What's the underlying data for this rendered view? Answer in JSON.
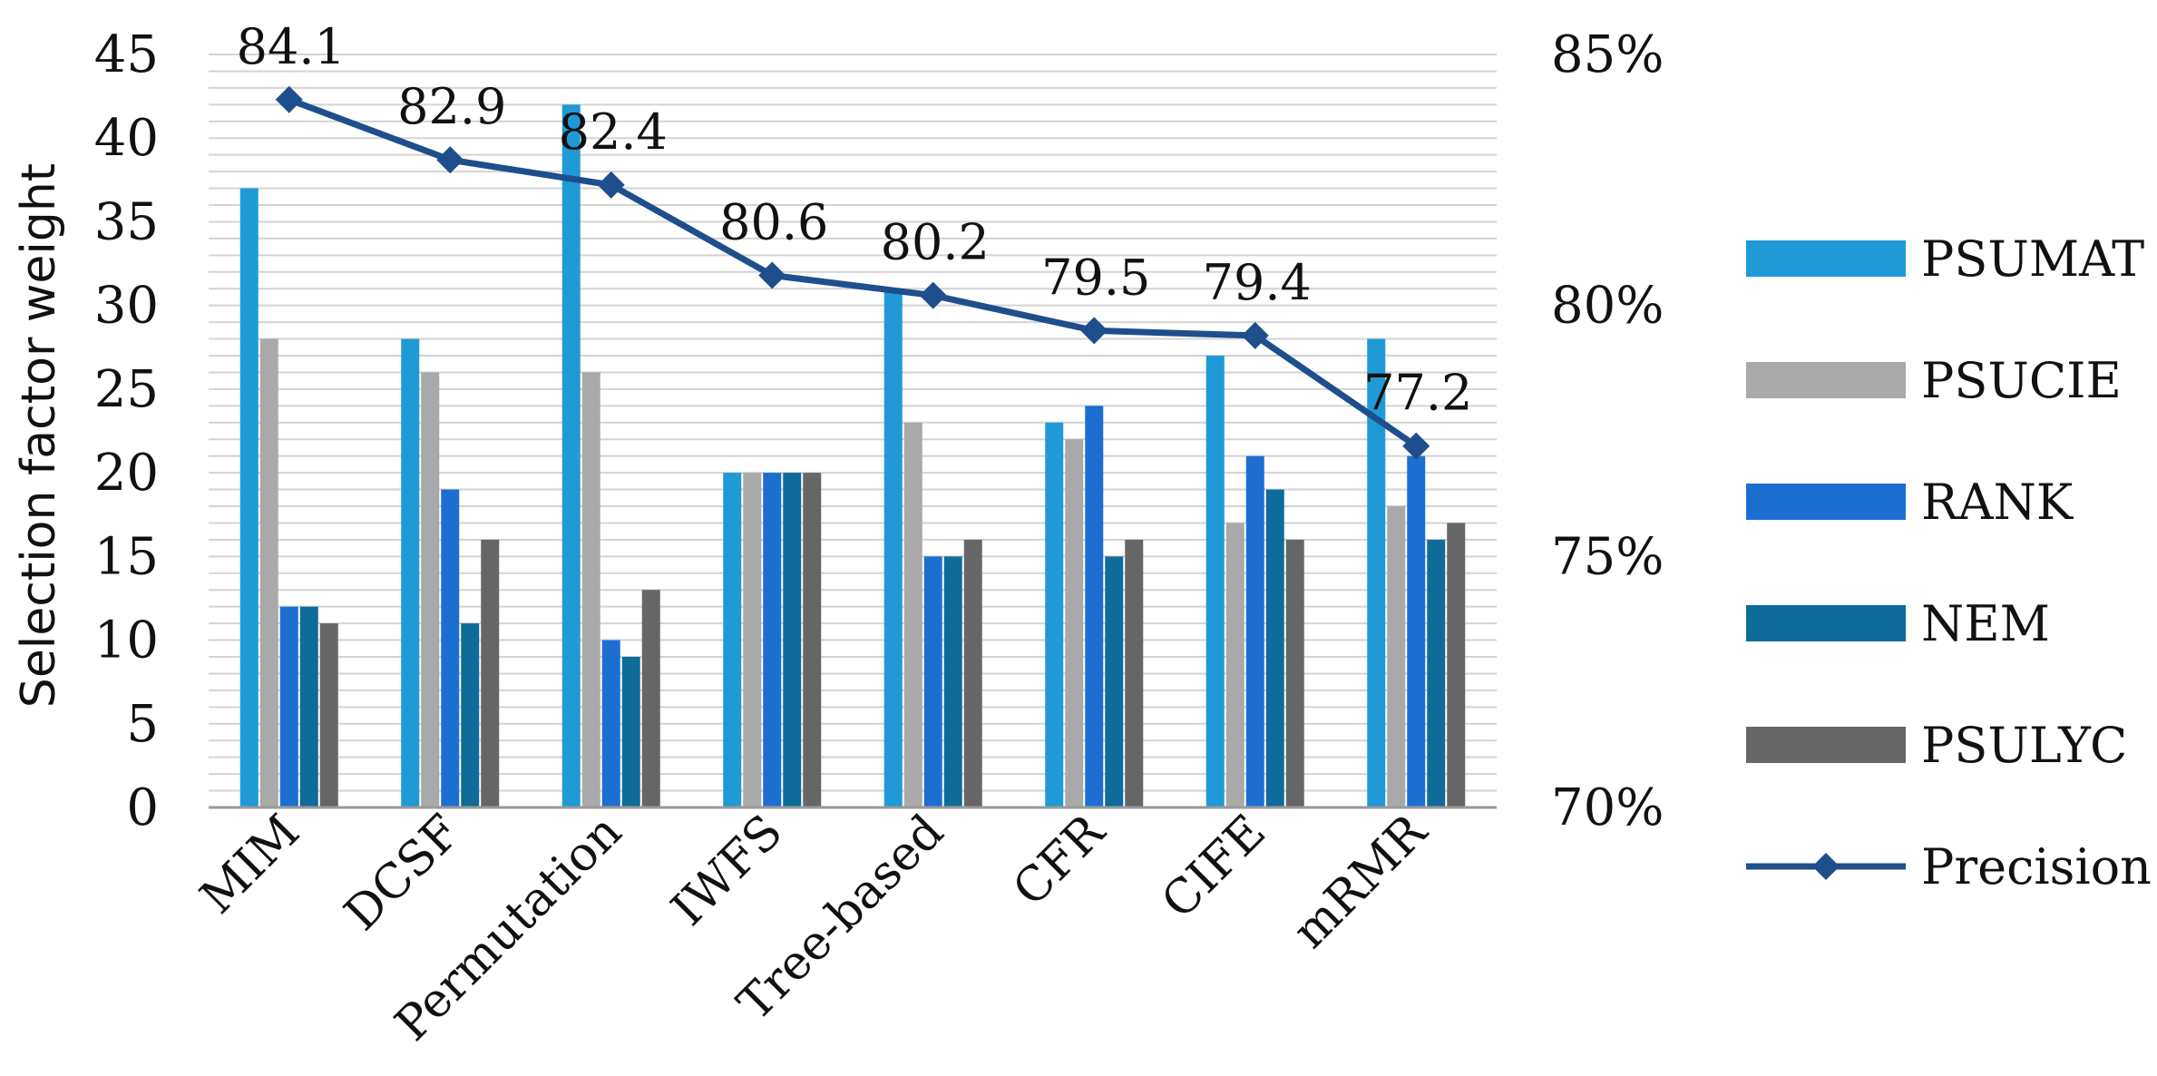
{
  "chart_data": {
    "type": "bar",
    "title": "",
    "xlabel": "",
    "ylabel": "Selection factor weight",
    "ylim": [
      0,
      45
    ],
    "yticks": [
      "0",
      "5",
      "10",
      "15",
      "20",
      "25",
      "30",
      "35",
      "40",
      "45"
    ],
    "y2lim": [
      70,
      85
    ],
    "y2ticks": [
      "70%",
      "75%",
      "80%",
      "85%"
    ],
    "categories": [
      "MIM",
      "DCSF",
      "Permutation",
      "IWFS",
      "Tree-based",
      "CFR",
      "CIFE",
      "mRMR"
    ],
    "series": [
      {
        "name": "PSUMAT",
        "type": "bar",
        "color": "#1f9ad6",
        "values": [
          37,
          28,
          42,
          20,
          31,
          23,
          27,
          28
        ]
      },
      {
        "name": "PSUCIE",
        "type": "bar",
        "color": "#a9a9a9",
        "values": [
          28,
          26,
          26,
          20,
          23,
          22,
          17,
          18
        ]
      },
      {
        "name": "RANK",
        "type": "bar",
        "color": "#1c6fd1",
        "values": [
          12,
          19,
          10,
          20,
          15,
          24,
          21,
          21
        ]
      },
      {
        "name": "NEM",
        "type": "bar",
        "color": "#0f6b9a",
        "values": [
          12,
          11,
          9,
          20,
          15,
          15,
          19,
          16
        ]
      },
      {
        "name": "PSULYC",
        "type": "bar",
        "color": "#666666",
        "values": [
          11,
          16,
          13,
          20,
          16,
          16,
          16,
          17
        ]
      },
      {
        "name": "Precision",
        "type": "line",
        "axis": "right",
        "color": "#1f4e8c",
        "marker": "diamond",
        "values": [
          84.1,
          82.9,
          82.4,
          80.6,
          80.2,
          79.5,
          79.4,
          77.2
        ],
        "labels": [
          "84.1",
          "82.9",
          "82.4",
          "80.6",
          "80.2",
          "79.5",
          "79.4",
          "77.2"
        ]
      }
    ],
    "grid": true,
    "legend_position": "right"
  }
}
